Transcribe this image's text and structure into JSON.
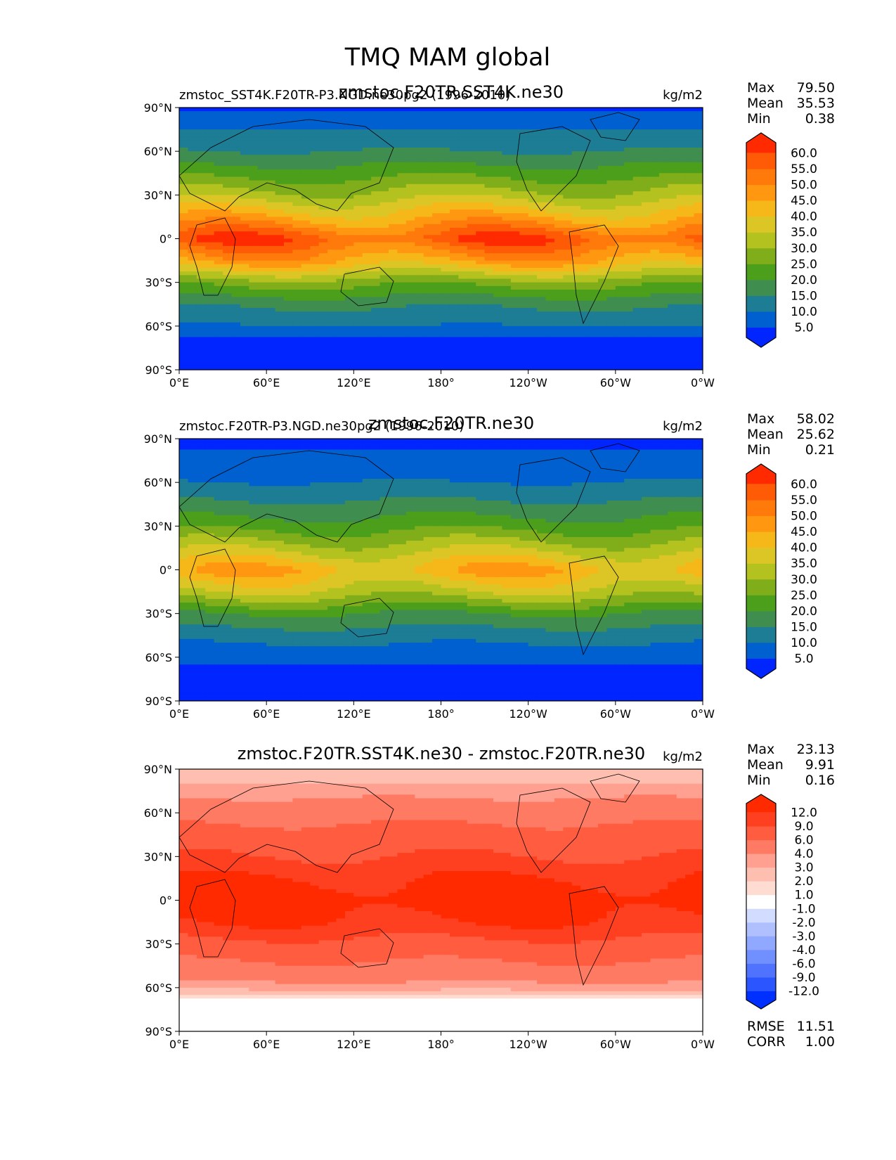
{
  "figure": {
    "title": "TMQ MAM global"
  },
  "palettes": {
    "field": [
      "#0025ff",
      "#0060d0",
      "#1d7d95",
      "#3f8e50",
      "#4c9f1a",
      "#80ad1a",
      "#b4c220",
      "#dcc626",
      "#f6b819",
      "#ff9810",
      "#ff7a0a",
      "#ff5a05",
      "#ff2a00"
    ],
    "diff": [
      "#0030ff",
      "#2a55ff",
      "#4f73ff",
      "#7090ff",
      "#90a8ff",
      "#b0c0ff",
      "#d2dcff",
      "#ffffff",
      "#ffdcd2",
      "#ffbfb0",
      "#ffa090",
      "#ff7a62",
      "#ff5c40",
      "#ff4020",
      "#ff2a00"
    ]
  },
  "chart_data": [
    {
      "type": "heatmap",
      "panel": "top",
      "left_title": "zmstoc_SST4K.F20TR-P3.NGD.ne30pg2 (1996-2010)",
      "center_title": "zmstoc.F20TR.SST4K.ne30",
      "units": "kg/m2",
      "stats": {
        "Max": "79.50",
        "Mean": "35.53",
        "Min": "0.38"
      },
      "x_ticks": [
        "0°E",
        "60°E",
        "120°E",
        "180°",
        "120°W",
        "60°W",
        "0°W"
      ],
      "y_ticks": [
        "90°N",
        "60°N",
        "30°N",
        "0°",
        "30°S",
        "60°S",
        "90°S"
      ],
      "x_range": [
        0,
        360
      ],
      "y_range": [
        -90,
        90
      ],
      "colorbar_levels": [
        "5.0",
        "10.0",
        "15.0",
        "20.0",
        "25.0",
        "30.0",
        "35.0",
        "40.0",
        "45.0",
        "50.0",
        "55.0",
        "60.0"
      ],
      "colorbar_extend": "both",
      "field_profile": {
        "lat_band_values": [
          [
            90,
            4
          ],
          [
            75,
            10
          ],
          [
            60,
            15
          ],
          [
            45,
            23
          ],
          [
            30,
            32
          ],
          [
            15,
            44
          ],
          [
            0,
            58
          ],
          [
            -15,
            46
          ],
          [
            -30,
            27
          ],
          [
            -45,
            16
          ],
          [
            -60,
            10
          ],
          [
            -70,
            4
          ],
          [
            -90,
            2
          ]
        ]
      }
    },
    {
      "type": "heatmap",
      "panel": "middle",
      "left_title": "zmstoc.F20TR-P3.NGD.ne30pg2 (1996-2010)",
      "center_title": "zmstoc.F20TR.ne30",
      "units": "kg/m2",
      "stats": {
        "Max": "58.02",
        "Mean": "25.62",
        "Min": "0.21"
      },
      "x_ticks": [
        "0°E",
        "60°E",
        "120°E",
        "180°",
        "120°W",
        "60°W",
        "0°W"
      ],
      "y_ticks": [
        "90°N",
        "60°N",
        "30°N",
        "0°",
        "30°S",
        "60°S",
        "90°S"
      ],
      "x_range": [
        0,
        360
      ],
      "y_range": [
        -90,
        90
      ],
      "colorbar_levels": [
        "5.0",
        "10.0",
        "15.0",
        "20.0",
        "25.0",
        "30.0",
        "35.0",
        "40.0",
        "45.0",
        "50.0",
        "55.0",
        "60.0"
      ],
      "colorbar_extend": "both",
      "field_profile": {
        "lat_band_values": [
          [
            90,
            3
          ],
          [
            75,
            7
          ],
          [
            60,
            10
          ],
          [
            45,
            16
          ],
          [
            30,
            23
          ],
          [
            15,
            33
          ],
          [
            0,
            44
          ],
          [
            -15,
            34
          ],
          [
            -30,
            20
          ],
          [
            -45,
            12
          ],
          [
            -60,
            7
          ],
          [
            -70,
            3
          ],
          [
            -90,
            2
          ]
        ]
      }
    },
    {
      "type": "heatmap",
      "panel": "bottom",
      "left_title": "",
      "center_title": "zmstoc.F20TR.SST4K.ne30 - zmstoc.F20TR.ne30",
      "units": "kg/m2",
      "stats": {
        "Max": "23.13",
        "Mean": "9.91",
        "Min": "0.16"
      },
      "x_ticks": [
        "0°E",
        "60°E",
        "120°E",
        "180°",
        "120°W",
        "60°W",
        "0°W"
      ],
      "y_ticks": [
        "90°N",
        "60°N",
        "30°N",
        "0°",
        "30°S",
        "60°S",
        "90°S"
      ],
      "x_range": [
        0,
        360
      ],
      "y_range": [
        -90,
        90
      ],
      "colorbar_levels": [
        "-12.0",
        "-9.0",
        "-6.0",
        "-4.0",
        "-3.0",
        "-2.0",
        "-1.0",
        "1.0",
        "2.0",
        "3.0",
        "4.0",
        "6.0",
        "9.0",
        "12.0"
      ],
      "colorbar_extend": "both",
      "extra_stats": {
        "RMSE": "11.51",
        "CORR": "1.00"
      },
      "field_profile": {
        "lat_band_values": [
          [
            90,
            2
          ],
          [
            75,
            3.5
          ],
          [
            60,
            5
          ],
          [
            45,
            7
          ],
          [
            30,
            9
          ],
          [
            15,
            12
          ],
          [
            0,
            14
          ],
          [
            -15,
            12
          ],
          [
            -30,
            8
          ],
          [
            -45,
            5.5
          ],
          [
            -60,
            3.5
          ],
          [
            -70,
            0.5
          ],
          [
            -90,
            0.3
          ]
        ]
      }
    }
  ]
}
